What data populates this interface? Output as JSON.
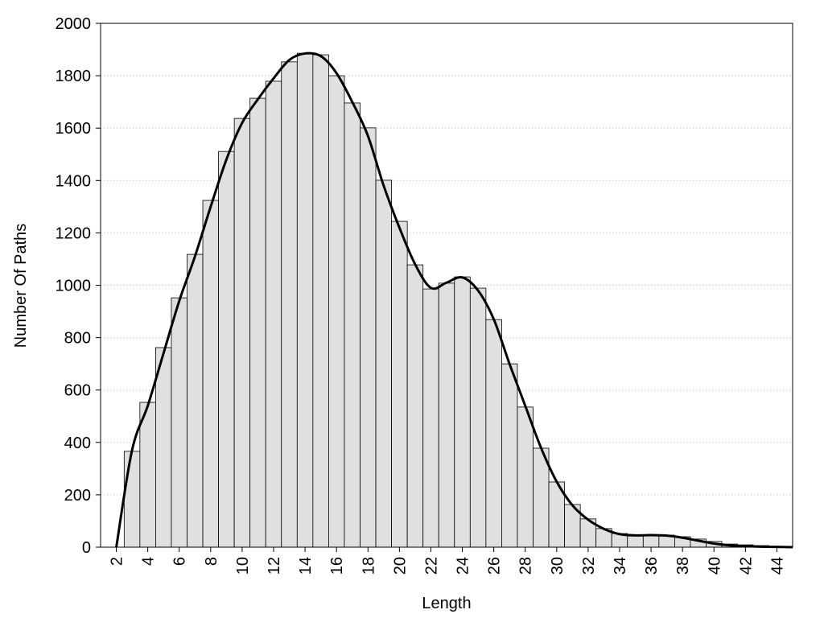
{
  "chart_data": {
    "type": "histogram",
    "xlabel": "Length",
    "ylabel": "Number Of Paths",
    "bins": [
      2.5,
      3.5,
      4.5,
      5.5,
      6.5,
      7.5,
      8.5,
      9.5,
      10.5,
      11.5,
      12.5,
      13.5,
      14.5,
      15.5,
      16.5,
      17.5,
      18.5,
      19.5,
      20.5,
      21.5,
      22.5,
      23.5,
      24.5,
      25.5,
      26.5,
      27.5,
      28.5,
      29.5,
      30.5,
      31.5,
      32.5,
      33.5,
      34.5,
      35.5,
      36.5,
      37.5,
      38.5,
      39.5,
      40.5,
      41.5,
      42.5,
      43.5,
      44.5
    ],
    "values": [
      366,
      553,
      762,
      952,
      1118,
      1324,
      1511,
      1637,
      1714,
      1779,
      1853,
      1886,
      1880,
      1800,
      1696,
      1601,
      1401,
      1244,
      1078,
      986,
      1008,
      1032,
      989,
      869,
      700,
      535,
      378,
      249,
      163,
      108,
      71,
      52,
      46,
      46,
      46,
      40,
      31,
      22,
      12,
      9,
      6,
      3
    ],
    "color": "#e0e0e0",
    "line": {
      "color": "#000000",
      "x": [
        2,
        3,
        4,
        5,
        6,
        7,
        8,
        9,
        10,
        11,
        12,
        13,
        14,
        15,
        16,
        17,
        18,
        19,
        20,
        21,
        22,
        23,
        24,
        25,
        26,
        27,
        28,
        29,
        30,
        31,
        32,
        33,
        34,
        35,
        36,
        37,
        38,
        39,
        40,
        41,
        42,
        43,
        44,
        45
      ],
      "values": [
        0,
        370,
        540,
        740,
        940,
        1110,
        1300,
        1480,
        1620,
        1710,
        1790,
        1860,
        1885,
        1875,
        1810,
        1700,
        1570,
        1380,
        1220,
        1080,
        990,
        1010,
        1030,
        980,
        870,
        700,
        540,
        380,
        250,
        160,
        105,
        70,
        50,
        45,
        46,
        44,
        36,
        25,
        14,
        7,
        4,
        2,
        1,
        0
      ]
    },
    "xlim": [
      1,
      45
    ],
    "ylim": [
      0,
      2000
    ],
    "xticks": [
      2,
      4,
      6,
      8,
      10,
      12,
      14,
      16,
      18,
      20,
      22,
      24,
      26,
      28,
      30,
      32,
      34,
      36,
      38,
      40,
      42,
      44
    ],
    "yticks": [
      0,
      200,
      400,
      600,
      800,
      1000,
      1200,
      1400,
      1600,
      1800,
      2000
    ],
    "grid": true
  }
}
